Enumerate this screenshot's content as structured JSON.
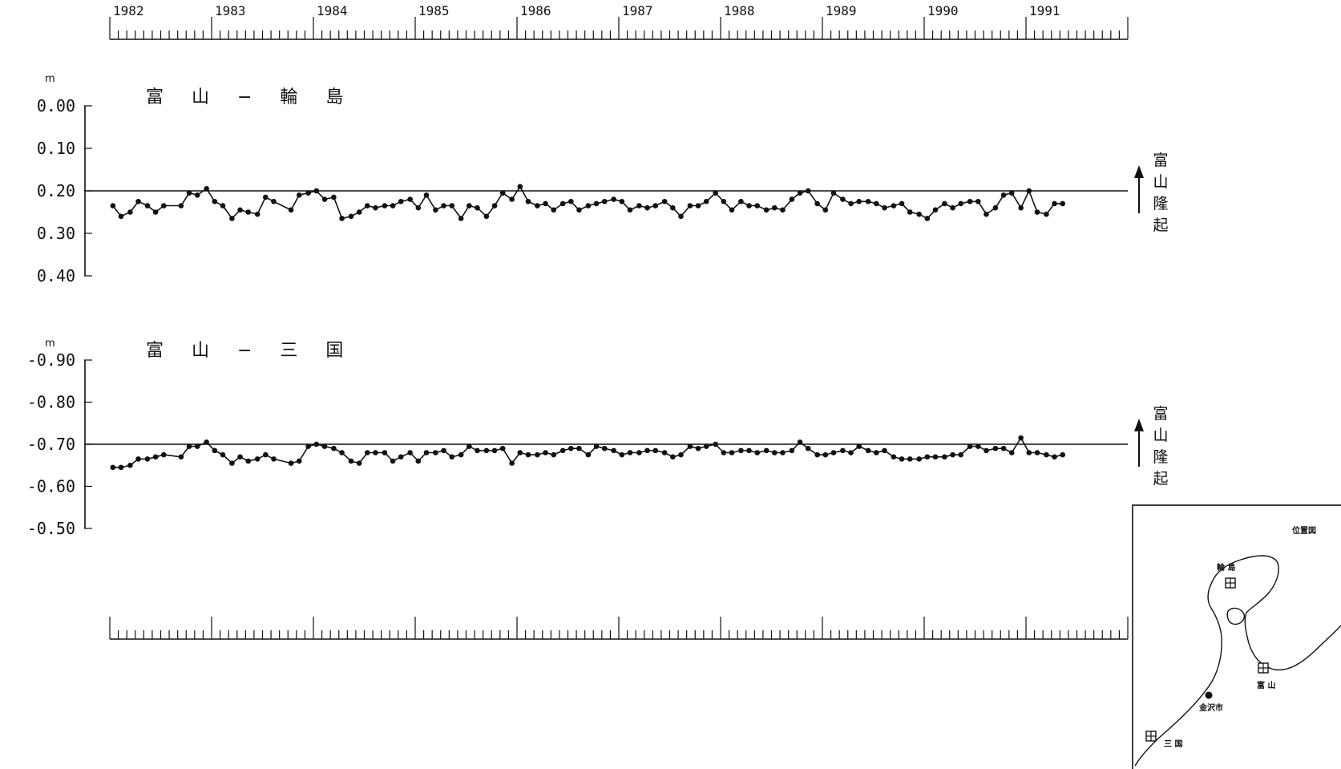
{
  "chart_data": [
    {
      "type": "line",
      "title": "富 山 − 輪 島",
      "ylabel": "m",
      "yticks": [
        "0.00",
        "0.10",
        "0.20",
        "0.30",
        "0.40"
      ],
      "ylim": [
        0.0,
        0.4
      ],
      "y_inverted": true,
      "reference_line": 0.2,
      "side_label": "富山隆起",
      "x_years": [
        "1982",
        "1983",
        "1984",
        "1985",
        "1986",
        "1987",
        "1988",
        "1989",
        "1990",
        "1991"
      ],
      "x_range": [
        1982.0,
        1992.0
      ],
      "series": [
        {
          "x": [
            1982.03,
            1982.11,
            1982.2,
            1982.28,
            1982.37,
            1982.45,
            1982.53,
            1982.7,
            1982.78,
            1982.86,
            1982.95,
            1983.03,
            1983.11,
            1983.2,
            1983.28,
            1983.36,
            1983.45,
            1983.53,
            1983.61,
            1983.78,
            1983.86,
            1983.95,
            1984.03,
            1984.11,
            1984.2,
            1984.28,
            1984.37,
            1984.45,
            1984.53,
            1984.61,
            1984.7,
            1984.78,
            1984.86,
            1984.95,
            1985.03,
            1985.11,
            1985.2,
            1985.28,
            1985.36,
            1985.45,
            1985.53,
            1985.61,
            1985.7,
            1985.78,
            1985.86,
            1985.95,
            1986.03,
            1986.11,
            1986.2,
            1986.28,
            1986.36,
            1986.45,
            1986.53,
            1986.61,
            1986.7,
            1986.78,
            1986.86,
            1986.95,
            1987.03,
            1987.11,
            1987.2,
            1987.28,
            1987.36,
            1987.45,
            1987.53,
            1987.61,
            1987.7,
            1987.78,
            1987.86,
            1987.95,
            1988.03,
            1988.11,
            1988.2,
            1988.28,
            1988.36,
            1988.45,
            1988.53,
            1988.61,
            1988.7,
            1988.78,
            1988.86,
            1988.95,
            1989.03,
            1989.11,
            1989.2,
            1989.28,
            1989.36,
            1989.45,
            1989.53,
            1989.61,
            1989.7,
            1989.78,
            1989.86,
            1989.95,
            1990.03,
            1990.11,
            1990.2,
            1990.28,
            1990.36,
            1990.45,
            1990.53,
            1990.61,
            1990.7,
            1990.78,
            1990.86,
            1990.95,
            1991.03,
            1991.11,
            1991.2,
            1991.28,
            1991.36
          ],
          "y": [
            0.235,
            0.26,
            0.25,
            0.225,
            0.235,
            0.25,
            0.235,
            0.235,
            0.205,
            0.21,
            0.195,
            0.225,
            0.235,
            0.265,
            0.245,
            0.25,
            0.255,
            0.215,
            0.225,
            0.245,
            0.21,
            0.205,
            0.2,
            0.22,
            0.215,
            0.265,
            0.26,
            0.25,
            0.235,
            0.24,
            0.235,
            0.235,
            0.225,
            0.22,
            0.24,
            0.21,
            0.245,
            0.235,
            0.235,
            0.265,
            0.235,
            0.24,
            0.26,
            0.235,
            0.205,
            0.22,
            0.19,
            0.225,
            0.235,
            0.23,
            0.245,
            0.23,
            0.225,
            0.245,
            0.235,
            0.23,
            0.225,
            0.22,
            0.225,
            0.245,
            0.235,
            0.24,
            0.235,
            0.225,
            0.24,
            0.26,
            0.235,
            0.235,
            0.225,
            0.205,
            0.225,
            0.245,
            0.225,
            0.235,
            0.235,
            0.245,
            0.24,
            0.245,
            0.22,
            0.205,
            0.2,
            0.23,
            0.245,
            0.205,
            0.22,
            0.23,
            0.225,
            0.225,
            0.23,
            0.24,
            0.235,
            0.23,
            0.25,
            0.255,
            0.265,
            0.245,
            0.23,
            0.24,
            0.23,
            0.225,
            0.225,
            0.255,
            0.24,
            0.21,
            0.205,
            0.24,
            0.2,
            0.25,
            0.255,
            0.23,
            0.23
          ]
        }
      ]
    },
    {
      "type": "line",
      "title": "富 山 − 三 国",
      "ylabel": "m",
      "yticks": [
        "-0.90",
        "-0.80",
        "-0.70",
        "-0.60",
        "-0.50"
      ],
      "ylim": [
        -0.9,
        -0.5
      ],
      "reference_line": -0.7,
      "side_label": "富山隆起",
      "x_years": [
        "1982",
        "1983",
        "1984",
        "1985",
        "1986",
        "1987",
        "1988",
        "1989",
        "1990",
        "1991"
      ],
      "x_range": [
        1982.0,
        1992.0
      ],
      "series": [
        {
          "x": [
            1982.03,
            1982.11,
            1982.2,
            1982.28,
            1982.37,
            1982.45,
            1982.53,
            1982.7,
            1982.78,
            1982.86,
            1982.95,
            1983.03,
            1983.11,
            1983.2,
            1983.28,
            1983.36,
            1983.45,
            1983.53,
            1983.61,
            1983.78,
            1983.86,
            1983.95,
            1984.03,
            1984.11,
            1984.2,
            1984.28,
            1984.37,
            1984.45,
            1984.53,
            1984.61,
            1984.7,
            1984.78,
            1984.86,
            1984.95,
            1985.03,
            1985.11,
            1985.2,
            1985.28,
            1985.36,
            1985.45,
            1985.53,
            1985.61,
            1985.7,
            1985.78,
            1985.86,
            1985.95,
            1986.03,
            1986.11,
            1986.2,
            1986.28,
            1986.36,
            1986.45,
            1986.53,
            1986.61,
            1986.7,
            1986.78,
            1986.86,
            1986.95,
            1987.03,
            1987.11,
            1987.2,
            1987.28,
            1987.36,
            1987.45,
            1987.53,
            1987.61,
            1987.7,
            1987.78,
            1987.86,
            1987.95,
            1988.03,
            1988.11,
            1988.2,
            1988.28,
            1988.36,
            1988.45,
            1988.53,
            1988.61,
            1988.7,
            1988.78,
            1988.86,
            1988.95,
            1989.03,
            1989.11,
            1989.2,
            1989.28,
            1989.36,
            1989.45,
            1989.53,
            1989.61,
            1989.7,
            1989.78,
            1989.86,
            1989.95,
            1990.03,
            1990.11,
            1990.2,
            1990.28,
            1990.36,
            1990.45,
            1990.53,
            1990.61,
            1990.7,
            1990.78,
            1990.86,
            1990.95,
            1991.03,
            1991.11,
            1991.2,
            1991.28,
            1991.36
          ],
          "y": [
            -0.645,
            -0.645,
            -0.65,
            -0.665,
            -0.665,
            -0.67,
            -0.675,
            -0.67,
            -0.695,
            -0.695,
            -0.705,
            -0.685,
            -0.675,
            -0.655,
            -0.67,
            -0.66,
            -0.665,
            -0.675,
            -0.665,
            -0.655,
            -0.66,
            -0.695,
            -0.7,
            -0.695,
            -0.69,
            -0.68,
            -0.66,
            -0.655,
            -0.68,
            -0.68,
            -0.68,
            -0.66,
            -0.67,
            -0.68,
            -0.66,
            -0.68,
            -0.68,
            -0.685,
            -0.67,
            -0.675,
            -0.695,
            -0.685,
            -0.685,
            -0.685,
            -0.69,
            -0.655,
            -0.68,
            -0.675,
            -0.675,
            -0.68,
            -0.675,
            -0.685,
            -0.69,
            -0.69,
            -0.675,
            -0.695,
            -0.69,
            -0.685,
            -0.675,
            -0.68,
            -0.68,
            -0.685,
            -0.685,
            -0.68,
            -0.67,
            -0.675,
            -0.695,
            -0.69,
            -0.695,
            -0.7,
            -0.68,
            -0.68,
            -0.685,
            -0.685,
            -0.68,
            -0.685,
            -0.68,
            -0.68,
            -0.685,
            -0.705,
            -0.69,
            -0.675,
            -0.675,
            -0.68,
            -0.685,
            -0.68,
            -0.695,
            -0.685,
            -0.68,
            -0.685,
            -0.67,
            -0.665,
            -0.665,
            -0.665,
            -0.67,
            -0.67,
            -0.67,
            -0.675,
            -0.675,
            -0.695,
            -0.695,
            -0.685,
            -0.69,
            -0.69,
            -0.68,
            -0.715,
            -0.68,
            -0.68,
            -0.675,
            -0.67,
            -0.675
          ]
        }
      ]
    }
  ],
  "inset_map": {
    "title": "位置図",
    "places": [
      {
        "name": "輪 島",
        "kind": "station"
      },
      {
        "name": "富 山",
        "kind": "station"
      },
      {
        "name": "金沢市",
        "kind": "city"
      },
      {
        "name": "三 国",
        "kind": "station"
      }
    ]
  }
}
